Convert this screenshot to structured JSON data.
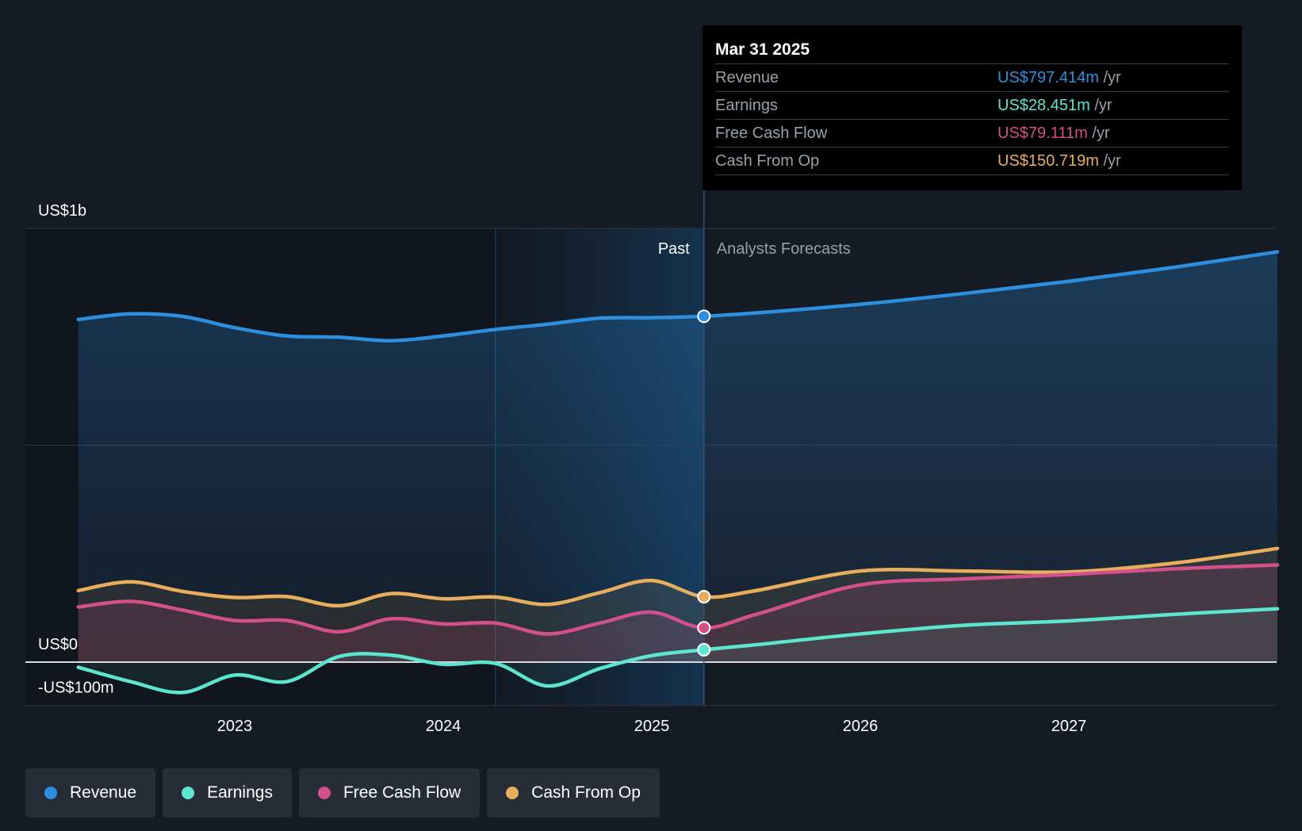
{
  "chart_data": {
    "type": "line",
    "title": "",
    "y_axis": {
      "min": -100,
      "max": 1000,
      "unit": "US$m",
      "tick_labels": [
        "US$1b",
        "US$0",
        "-US$100m"
      ]
    },
    "x_axis": {
      "tick_labels": [
        "2023",
        "2024",
        "2025",
        "2026",
        "2027"
      ]
    },
    "sections": {
      "past": "Past",
      "forecast": "Analysts Forecasts"
    },
    "series": [
      {
        "name": "Revenue",
        "color": "#2d8fe0",
        "points": [
          [
            2022.25,
            790
          ],
          [
            2022.5,
            803
          ],
          [
            2022.75,
            797
          ],
          [
            2023.0,
            771
          ],
          [
            2023.25,
            752
          ],
          [
            2023.5,
            749
          ],
          [
            2023.75,
            741
          ],
          [
            2024.0,
            752
          ],
          [
            2024.25,
            767
          ],
          [
            2024.5,
            779
          ],
          [
            2024.75,
            793
          ],
          [
            2025.0,
            794
          ],
          [
            2025.25,
            797.414
          ],
          [
            2025.5,
            805
          ],
          [
            2026.0,
            825
          ],
          [
            2026.5,
            850
          ],
          [
            2027.0,
            878
          ],
          [
            2027.5,
            910
          ],
          [
            2028.0,
            946
          ]
        ]
      },
      {
        "name": "Earnings",
        "color": "#5ce6d2",
        "points": [
          [
            2022.25,
            -12
          ],
          [
            2022.5,
            -45
          ],
          [
            2022.75,
            -70
          ],
          [
            2023.0,
            -30
          ],
          [
            2023.25,
            -45
          ],
          [
            2023.5,
            13
          ],
          [
            2023.75,
            16
          ],
          [
            2024.0,
            -5
          ],
          [
            2024.25,
            -3
          ],
          [
            2024.5,
            -55
          ],
          [
            2024.75,
            -15
          ],
          [
            2025.0,
            15
          ],
          [
            2025.25,
            28.451
          ],
          [
            2025.5,
            40
          ],
          [
            2026.0,
            65
          ],
          [
            2026.5,
            85
          ],
          [
            2027.0,
            95
          ],
          [
            2027.5,
            110
          ],
          [
            2028.0,
            123
          ]
        ]
      },
      {
        "name": "Free Cash Flow",
        "color": "#d4508a",
        "points": [
          [
            2022.25,
            127
          ],
          [
            2022.5,
            140
          ],
          [
            2022.75,
            120
          ],
          [
            2023.0,
            96
          ],
          [
            2023.25,
            96
          ],
          [
            2023.5,
            70
          ],
          [
            2023.75,
            100
          ],
          [
            2024.0,
            88
          ],
          [
            2024.25,
            90
          ],
          [
            2024.5,
            65
          ],
          [
            2024.75,
            90
          ],
          [
            2025.0,
            115
          ],
          [
            2025.25,
            79.111
          ],
          [
            2025.5,
            110
          ],
          [
            2026.0,
            178
          ],
          [
            2026.5,
            192
          ],
          [
            2027.0,
            202
          ],
          [
            2027.5,
            215
          ],
          [
            2028.0,
            224
          ]
        ]
      },
      {
        "name": "Cash From Op",
        "color": "#e9ae5d",
        "points": [
          [
            2022.25,
            165
          ],
          [
            2022.5,
            185
          ],
          [
            2022.75,
            163
          ],
          [
            2023.0,
            149
          ],
          [
            2023.25,
            151
          ],
          [
            2023.5,
            130
          ],
          [
            2023.75,
            158
          ],
          [
            2024.0,
            146
          ],
          [
            2024.25,
            150
          ],
          [
            2024.5,
            133
          ],
          [
            2024.75,
            160
          ],
          [
            2025.0,
            188
          ],
          [
            2025.25,
            150.719
          ],
          [
            2025.5,
            165
          ],
          [
            2026.0,
            210
          ],
          [
            2026.5,
            210
          ],
          [
            2027.0,
            208
          ],
          [
            2027.5,
            228
          ],
          [
            2028.0,
            262
          ]
        ]
      }
    ],
    "tooltip": {
      "date": "Mar 31 2025",
      "rows": [
        {
          "label": "Revenue",
          "value": "US$797.414m",
          "unit": "/yr",
          "color": "#2d8fe0"
        },
        {
          "label": "Earnings",
          "value": "US$28.451m",
          "unit": "/yr",
          "color": "#5ce6d2"
        },
        {
          "label": "Free Cash Flow",
          "value": "US$79.111m",
          "unit": "/yr",
          "color": "#d4508a"
        },
        {
          "label": "Cash From Op",
          "value": "US$150.719m",
          "unit": "/yr",
          "color": "#e9ae5d"
        }
      ]
    },
    "legend": [
      "Revenue",
      "Earnings",
      "Free Cash Flow",
      "Cash From Op"
    ]
  }
}
